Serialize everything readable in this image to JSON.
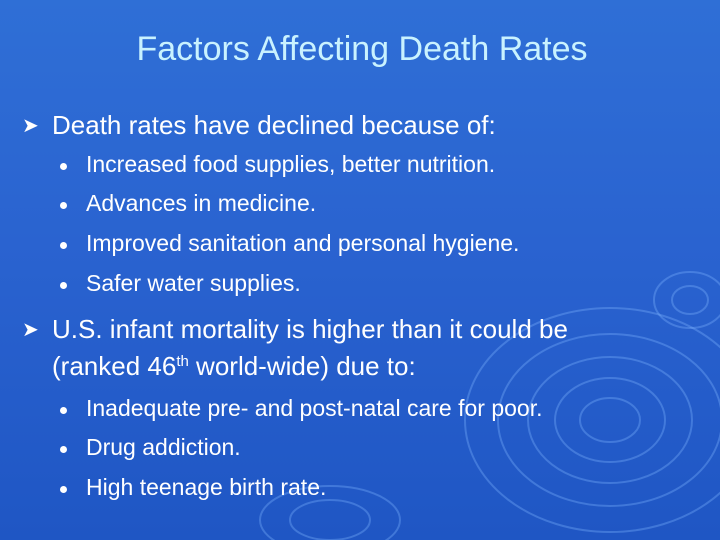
{
  "slide": {
    "title": "Factors Affecting Death Rates",
    "points": [
      {
        "text": "Death rates have declined because of:",
        "subpoints": [
          "Increased food supplies, better nutrition.",
          "Advances in medicine.",
          "Improved sanitation and personal hygiene.",
          "Safer water supplies."
        ]
      },
      {
        "line1": "U.S. infant mortality is higher than it could be",
        "line2_pre": "(ranked 46",
        "line2_sup": "th",
        "line2_post": " world-wide) due to:",
        "subpoints": [
          "Inadequate pre- and post-natal care for poor.",
          "Drug addiction.",
          "High teenage birth rate."
        ]
      }
    ]
  },
  "icons": {
    "level1": "arrow-bullet-icon",
    "level2": "round-bullet-icon"
  },
  "colors": {
    "background": "#2a63d0",
    "title": "#c9f2ff",
    "text": "#ffffff"
  }
}
